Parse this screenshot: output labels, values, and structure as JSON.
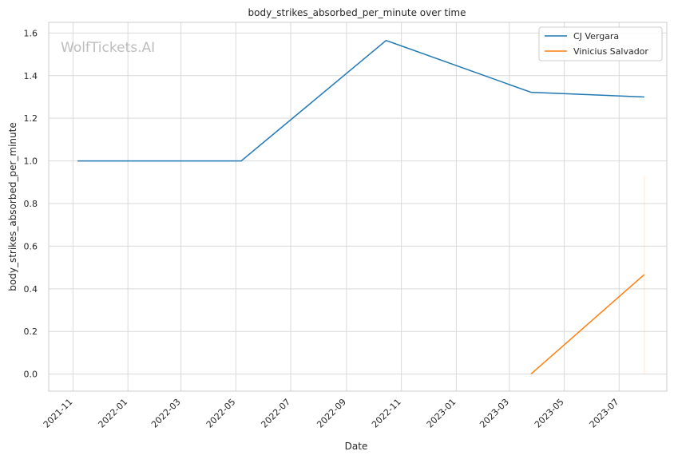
{
  "watermark": "WolfTickets.AI",
  "chart_data": {
    "type": "line",
    "title": "body_strikes_absorbed_per_minute over time",
    "xlabel": "Date",
    "ylabel": "body_strikes_absorbed_per_minute",
    "x_ticks": [
      "2021-11",
      "2022-01",
      "2022-03",
      "2022-05",
      "2022-07",
      "2022-09",
      "2022-11",
      "2023-01",
      "2023-03",
      "2023-05",
      "2023-07"
    ],
    "y_ticks": [
      "0.0",
      "0.2",
      "0.4",
      "0.6",
      "0.8",
      "1.0",
      "1.2",
      "1.4",
      "1.6"
    ],
    "xlim": [
      "2021-10-05",
      "2023-08-23"
    ],
    "ylim": [
      -0.08,
      1.65
    ],
    "grid": true,
    "legend_position": "top-right",
    "series": [
      {
        "name": "CJ Vergara",
        "color": "#1f77b4",
        "points": [
          {
            "x": "2021-11-06",
            "y": 1.0
          },
          {
            "x": "2022-05-07",
            "y": 1.0
          },
          {
            "x": "2022-10-15",
            "y": 1.565
          },
          {
            "x": "2023-03-25",
            "y": 1.322
          },
          {
            "x": "2023-07-29",
            "y": 1.3
          }
        ]
      },
      {
        "name": "Vinicius Salvador",
        "color": "#ff7f0e",
        "points": [
          {
            "x": "2023-03-25",
            "y": 0.0
          },
          {
            "x": "2023-07-29",
            "y": 0.467
          }
        ],
        "error_band": {
          "x": "2023-07-29",
          "low": 0.0,
          "high": 0.933
        }
      }
    ]
  }
}
